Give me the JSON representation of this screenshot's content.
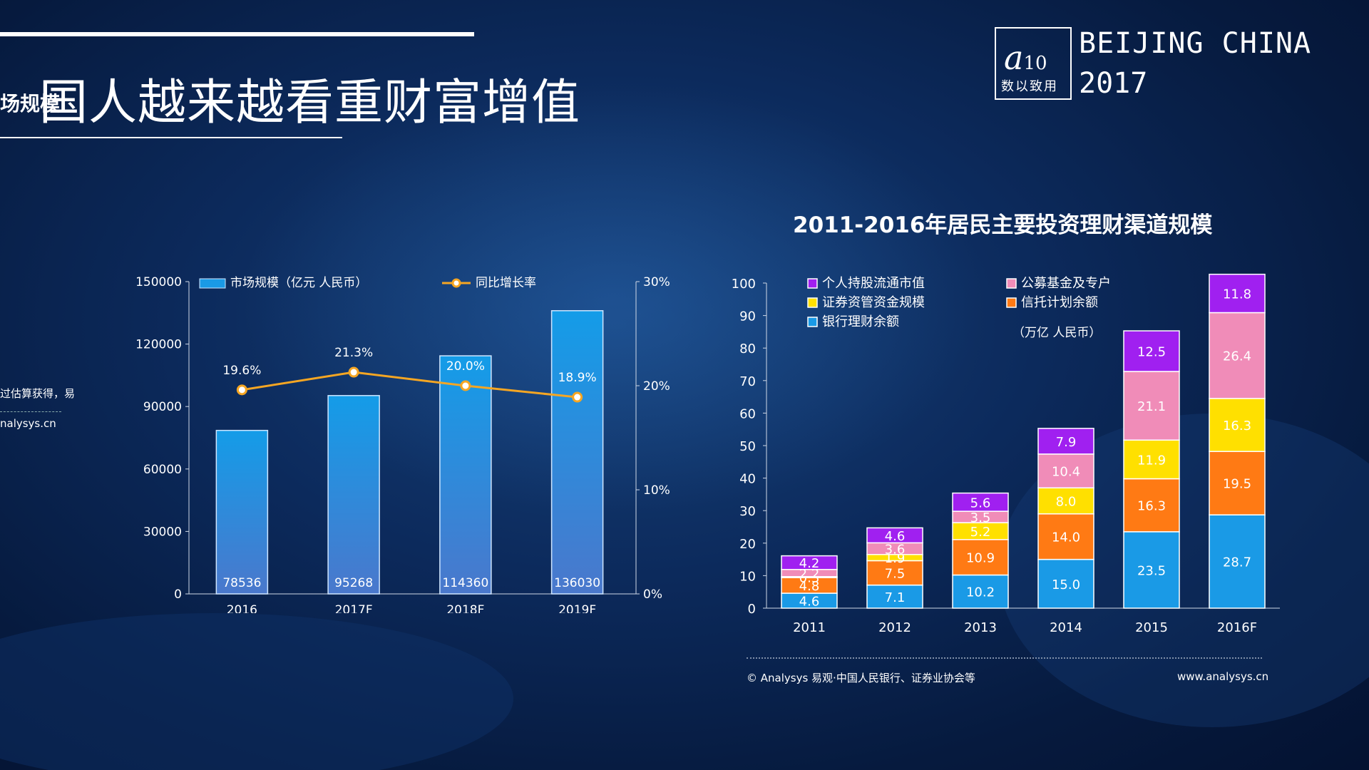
{
  "header": {
    "title": "国人越来越看重财富增值",
    "cut_left_label": "场规模",
    "cut_note_1": "过估算获得，易",
    "cut_note_2": "nalysys.cn"
  },
  "brand": {
    "logo_text": "数以致用",
    "location_line1": "BEIJING CHINA",
    "location_line2": "2017"
  },
  "footer": {
    "source": "© Analysys 易观·中国人民银行、证券业协会等",
    "url": "www.analysys.cn"
  },
  "colors": {
    "bar": "#1a9ae6",
    "line": "#f5a623",
    "purple": "#a020f0",
    "pink": "#f08cb8",
    "yellow": "#ffe000",
    "orange": "#ff7a14",
    "blue": "#1a9ae6"
  },
  "chart_data": [
    {
      "type": "bar",
      "title": "",
      "categories": [
        "2016",
        "2017F",
        "2018F",
        "2019F"
      ],
      "series": [
        {
          "name": "市场规模（亿元 人民币）",
          "values": [
            78536,
            95268,
            114360,
            136030
          ],
          "axis": "left"
        },
        {
          "name": "同比增长率",
          "type": "line",
          "values": [
            19.6,
            21.3,
            20.0,
            18.9
          ],
          "labels": [
            "19.6%",
            "21.3%",
            "20.0%",
            "18.9%"
          ],
          "axis": "right"
        }
      ],
      "ylim": [
        0,
        150000
      ],
      "yticks": [
        "0",
        "30000",
        "60000",
        "90000",
        "120000",
        "150000"
      ],
      "y2lim": [
        0,
        30
      ],
      "y2ticks": [
        "0%",
        "10%",
        "20%",
        "30%"
      ],
      "legend": "top"
    },
    {
      "type": "bar",
      "stacked": true,
      "title": "2011-2016年居民主要投资理财渠道规模",
      "categories": [
        "2011",
        "2012",
        "2013",
        "2014",
        "2015",
        "2016F"
      ],
      "series": [
        {
          "name": "银行理财余额",
          "color": "blue",
          "values": [
            4.6,
            7.1,
            10.2,
            15.0,
            23.5,
            28.7
          ],
          "labels": [
            "4.6",
            "7.1",
            "10.2",
            "15.0",
            "23.5",
            "28.7"
          ]
        },
        {
          "name": "信托计划余额",
          "color": "orange",
          "values": [
            4.8,
            7.5,
            10.9,
            14.0,
            16.3,
            19.5
          ],
          "labels": [
            "4.8",
            "7.5",
            "10.9",
            "14.0",
            "16.3",
            "19.5"
          ]
        },
        {
          "name": "证券资管资金规模",
          "color": "yellow",
          "values": [
            0.3,
            1.9,
            5.2,
            8.0,
            11.9,
            16.3
          ],
          "labels": [
            "0.3",
            "1.9",
            "5.2",
            "8.0",
            "11.9",
            "16.3"
          ]
        },
        {
          "name": "公募基金及专户",
          "color": "pink",
          "values": [
            2.2,
            3.6,
            3.5,
            10.4,
            21.1,
            26.4
          ],
          "labels": [
            "2.2",
            "3.6",
            "3.5",
            "10.4",
            "21.1",
            "26.4"
          ]
        },
        {
          "name": "个人持股流通市值",
          "color": "purple",
          "values": [
            4.2,
            4.6,
            5.6,
            7.9,
            12.5,
            11.8
          ],
          "labels": [
            "4.2",
            "4.6",
            "5.6",
            "7.9",
            "12.5",
            "11.8"
          ]
        }
      ],
      "unit_note": "（万亿 人民币）",
      "ylim": [
        0,
        100
      ],
      "yticks": [
        "0",
        "10",
        "20",
        "30",
        "40",
        "50",
        "60",
        "70",
        "80",
        "90",
        "100"
      ],
      "legend": "top-left"
    }
  ]
}
